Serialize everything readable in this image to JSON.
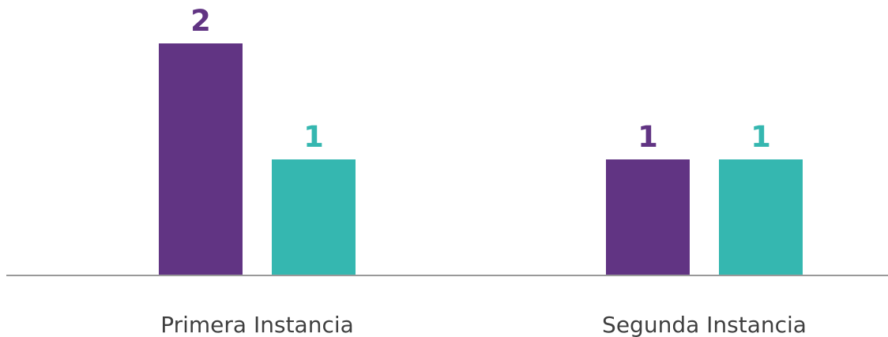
{
  "chart_data": {
    "type": "bar",
    "categories": [
      "Primera Instancia",
      "Segunda Instancia"
    ],
    "series": [
      {
        "values": [
          2,
          1
        ],
        "color": "#613483"
      },
      {
        "values": [
          1,
          1
        ],
        "color": "#35b7b0"
      }
    ],
    "ylim": [
      0,
      2
    ],
    "grid": false,
    "legend": "none",
    "axis_color": "#999999"
  }
}
